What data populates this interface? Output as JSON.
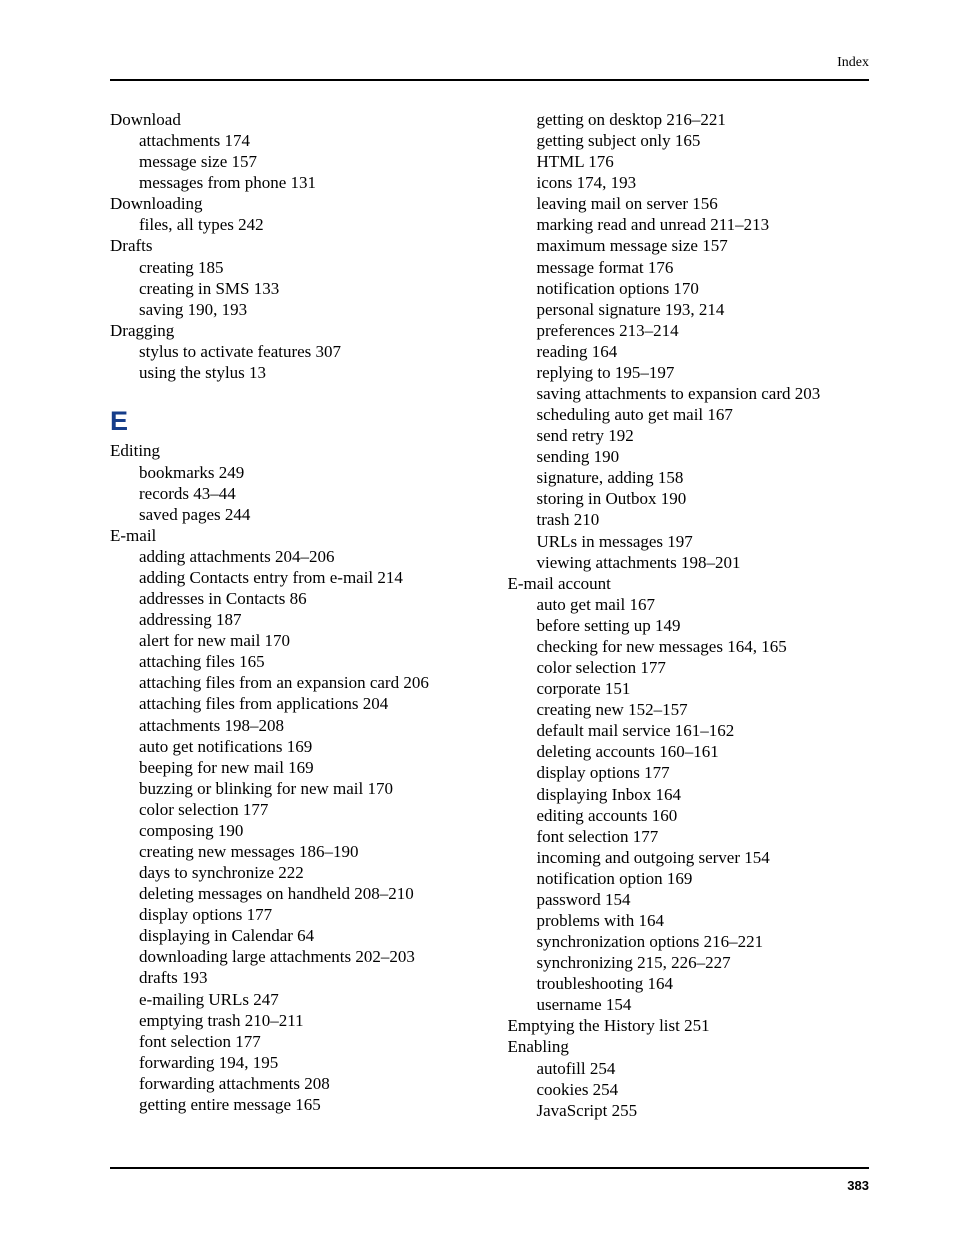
{
  "header_label": "Index",
  "page_number": "383",
  "section_letter_E": "E",
  "col_left": [
    {
      "t": "head",
      "text": "Download"
    },
    {
      "t": "sub",
      "text": "attachments  174"
    },
    {
      "t": "sub",
      "text": "message size  157"
    },
    {
      "t": "sub",
      "text": "messages from phone  131"
    },
    {
      "t": "head",
      "text": "Downloading"
    },
    {
      "t": "sub",
      "text": "files, all types  242"
    },
    {
      "t": "head",
      "text": "Drafts"
    },
    {
      "t": "sub",
      "text": "creating  185"
    },
    {
      "t": "sub",
      "text": "creating in SMS  133"
    },
    {
      "t": "sub",
      "text": "saving  190, 193"
    },
    {
      "t": "head",
      "text": "Dragging"
    },
    {
      "t": "sub",
      "text": "stylus to activate features  307"
    },
    {
      "t": "sub",
      "text": "using the stylus  13"
    },
    {
      "t": "letter",
      "text": "E"
    },
    {
      "t": "head",
      "text": "Editing"
    },
    {
      "t": "sub",
      "text": "bookmarks  249"
    },
    {
      "t": "sub",
      "text": "records  43–44"
    },
    {
      "t": "sub",
      "text": "saved pages  244"
    },
    {
      "t": "head",
      "text": "E-mail"
    },
    {
      "t": "sub",
      "text": "adding attachments  204–206"
    },
    {
      "t": "sub",
      "text": "adding Contacts entry from e-mail  214"
    },
    {
      "t": "sub",
      "text": "addresses in Contacts  86"
    },
    {
      "t": "sub",
      "text": "addressing  187"
    },
    {
      "t": "sub",
      "text": "alert for new mail  170"
    },
    {
      "t": "sub",
      "text": "attaching files  165"
    },
    {
      "t": "subwrap",
      "text": "attaching files from an expansion card  206"
    },
    {
      "t": "sub",
      "text": "attaching files from applications  204"
    },
    {
      "t": "sub",
      "text": "attachments  198–208"
    },
    {
      "t": "sub",
      "text": "auto get notifications  169"
    },
    {
      "t": "sub",
      "text": "beeping for new mail  169"
    },
    {
      "t": "sub",
      "text": "buzzing or blinking for new mail  170"
    },
    {
      "t": "sub",
      "text": "color selection  177"
    },
    {
      "t": "sub",
      "text": "composing  190"
    },
    {
      "t": "sub",
      "text": "creating new messages  186–190"
    },
    {
      "t": "sub",
      "text": "days to synchronize  222"
    },
    {
      "t": "sub",
      "text": "deleting messages on handheld  208–210"
    },
    {
      "t": "sub",
      "text": "display options  177"
    },
    {
      "t": "sub",
      "text": "displaying in Calendar  64"
    },
    {
      "t": "sub",
      "text": "downloading large attachments  202–203"
    },
    {
      "t": "sub",
      "text": "drafts  193"
    },
    {
      "t": "sub",
      "text": "e-mailing URLs  247"
    },
    {
      "t": "sub",
      "text": "emptying trash  210–211"
    },
    {
      "t": "sub",
      "text": "font selection  177"
    },
    {
      "t": "sub",
      "text": "forwarding  194, 195"
    },
    {
      "t": "sub",
      "text": "forwarding attachments  208"
    },
    {
      "t": "sub",
      "text": "getting entire message  165"
    }
  ],
  "col_right": [
    {
      "t": "sub",
      "text": "getting on desktop  216–221"
    },
    {
      "t": "sub",
      "text": "getting subject only  165"
    },
    {
      "t": "sub",
      "text": "HTML  176"
    },
    {
      "t": "sub",
      "text": "icons  174, 193"
    },
    {
      "t": "sub",
      "text": "leaving mail on server  156"
    },
    {
      "t": "sub",
      "text": "marking read and unread  211–213"
    },
    {
      "t": "sub",
      "text": "maximum message size  157"
    },
    {
      "t": "sub",
      "text": "message format  176"
    },
    {
      "t": "sub",
      "text": "notification options  170"
    },
    {
      "t": "sub",
      "text": "personal signature  193, 214"
    },
    {
      "t": "sub",
      "text": "preferences  213–214"
    },
    {
      "t": "sub",
      "text": "reading  164"
    },
    {
      "t": "sub",
      "text": "replying to  195–197"
    },
    {
      "t": "subwrap",
      "text": "saving attachments to expansion card  203"
    },
    {
      "t": "sub",
      "text": "scheduling auto get mail  167"
    },
    {
      "t": "sub",
      "text": "send retry  192"
    },
    {
      "t": "sub",
      "text": "sending  190"
    },
    {
      "t": "sub",
      "text": "signature, adding  158"
    },
    {
      "t": "sub",
      "text": "storing in Outbox  190"
    },
    {
      "t": "sub",
      "text": "trash  210"
    },
    {
      "t": "sub",
      "text": "URLs in messages  197"
    },
    {
      "t": "sub",
      "text": "viewing attachments  198–201"
    },
    {
      "t": "head",
      "text": "E-mail account"
    },
    {
      "t": "sub",
      "text": "auto get mail  167"
    },
    {
      "t": "sub",
      "text": "before setting up  149"
    },
    {
      "t": "sub",
      "text": "checking for new messages  164, 165"
    },
    {
      "t": "sub",
      "text": "color selection  177"
    },
    {
      "t": "sub",
      "text": "corporate  151"
    },
    {
      "t": "sub",
      "text": "creating new  152–157"
    },
    {
      "t": "sub",
      "text": "default mail service  161–162"
    },
    {
      "t": "sub",
      "text": "deleting accounts  160–161"
    },
    {
      "t": "sub",
      "text": "display options  177"
    },
    {
      "t": "sub",
      "text": "displaying Inbox  164"
    },
    {
      "t": "sub",
      "text": "editing accounts  160"
    },
    {
      "t": "sub",
      "text": "font selection  177"
    },
    {
      "t": "sub",
      "text": "incoming and outgoing server  154"
    },
    {
      "t": "sub",
      "text": "notification option  169"
    },
    {
      "t": "sub",
      "text": "password  154"
    },
    {
      "t": "sub",
      "text": "problems with  164"
    },
    {
      "t": "sub",
      "text": "synchronization options  216–221"
    },
    {
      "t": "sub",
      "text": "synchronizing  215, 226–227"
    },
    {
      "t": "sub",
      "text": "troubleshooting  164"
    },
    {
      "t": "sub",
      "text": "username  154"
    },
    {
      "t": "head",
      "text": "Emptying the History list  251"
    },
    {
      "t": "head",
      "text": "Enabling"
    },
    {
      "t": "sub",
      "text": "autofill  254"
    },
    {
      "t": "sub",
      "text": "cookies  254"
    },
    {
      "t": "sub",
      "text": "JavaScript  255"
    }
  ]
}
